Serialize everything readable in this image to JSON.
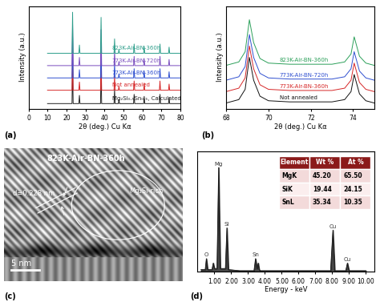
{
  "chart_data": [
    {
      "panel": "(a)",
      "type": "line",
      "x_label": "2θ (deg.) Cu Kα",
      "y_label": "Intensity (a.u.)",
      "xlim": [
        0,
        80
      ],
      "xticks": [
        0,
        10,
        20,
        30,
        40,
        50,
        60,
        70,
        80
      ],
      "ylim": [
        0,
        100
      ],
      "tick_labels": "x",
      "x": [
        10,
        22.9,
        23.2,
        23.5,
        26.5,
        26.8,
        27.1,
        37.9,
        38.2,
        38.5,
        45.0,
        45.3,
        45.6,
        47.3,
        47.6,
        47.9,
        55.3,
        55.6,
        55.9,
        60.6,
        60.9,
        61.2,
        68.9,
        69.2,
        69.5,
        73.7,
        74.0,
        74.3,
        80
      ],
      "series": [
        {
          "name": "Mg₂Si₀.₅Sn₀.₅, Calculated",
          "color": "#222222",
          "values": [
            5,
            5,
            45,
            5,
            5,
            13,
            5,
            5,
            40,
            5,
            5,
            19,
            5,
            5,
            9,
            5,
            5,
            14,
            5,
            5,
            12,
            5,
            5,
            14,
            5,
            5,
            11,
            5,
            5
          ]
        },
        {
          "name": "Not annealed",
          "color": "#d62728",
          "values": [
            18,
            18,
            58,
            18,
            18,
            26,
            18,
            18,
            53,
            18,
            18,
            32,
            18,
            18,
            22,
            18,
            18,
            27,
            18,
            18,
            25,
            18,
            18,
            27,
            18,
            18,
            24,
            18,
            18
          ]
        },
        {
          "name": "773K-Air-BN-360h",
          "color": "#3050d0",
          "values": [
            30,
            30,
            70,
            30,
            30,
            38,
            30,
            30,
            65,
            30,
            30,
            44,
            30,
            30,
            34,
            30,
            30,
            39,
            30,
            30,
            37,
            30,
            30,
            39,
            30,
            30,
            36,
            30,
            30
          ]
        },
        {
          "name": "773K-Air-BN-720h",
          "color": "#7b4fbf",
          "values": [
            42,
            42,
            82,
            42,
            42,
            50,
            42,
            42,
            77,
            42,
            42,
            56,
            42,
            42,
            46,
            42,
            42,
            51,
            42,
            42,
            49,
            42,
            42,
            51,
            42,
            42,
            48,
            42,
            42
          ]
        },
        {
          "name": "823K-Air-BN-360h",
          "color": "#2e9e8b",
          "values": [
            54,
            54,
            94,
            54,
            54,
            62,
            54,
            54,
            89,
            54,
            54,
            68,
            54,
            54,
            58,
            54,
            54,
            63,
            54,
            54,
            61,
            54,
            54,
            63,
            54,
            54,
            60,
            54,
            54
          ]
        }
      ]
    },
    {
      "panel": "(b)",
      "type": "line",
      "x_label": "2θ (deg.) Cu Kα",
      "y_label": "Intensity (a.u.)",
      "xlim": [
        68,
        75
      ],
      "xticks": [
        68,
        70,
        72,
        74
      ],
      "ylim": [
        0,
        90
      ],
      "tick_labels": "x",
      "x": [
        68.0,
        68.6,
        68.9,
        69.1,
        69.3,
        69.6,
        70.0,
        71.0,
        72.0,
        73.0,
        73.6,
        73.9,
        74.05,
        74.3,
        74.6,
        75.0
      ],
      "series": [
        {
          "name": "Not annealed",
          "color": "#111111",
          "values": [
            5,
            8,
            17,
            45,
            25,
            11,
            7,
            6,
            6,
            6,
            8,
            15,
            30,
            13,
            7,
            5
          ]
        },
        {
          "name": "773K-Air-BN-360h",
          "color": "#d62728",
          "values": [
            15,
            18,
            27,
            55,
            35,
            21,
            17,
            16,
            16,
            16,
            18,
            25,
            40,
            23,
            17,
            15
          ]
        },
        {
          "name": "773K-Air-BN-720h",
          "color": "#3050d0",
          "values": [
            25,
            28,
            37,
            65,
            45,
            31,
            27,
            26,
            26,
            26,
            28,
            35,
            50,
            33,
            27,
            25
          ]
        },
        {
          "name": "823K-Air-BN-360h",
          "color": "#2ca05a",
          "values": [
            38,
            41,
            50,
            78,
            58,
            44,
            40,
            39,
            39,
            39,
            41,
            48,
            63,
            46,
            40,
            38
          ]
        }
      ]
    },
    {
      "panel": "(c)",
      "type": "image",
      "title": "823K-Air-BN-360h",
      "annotations": [
        "d=0.228 nm",
        "Mg₂Si-rich"
      ],
      "scale_bar_label": "5 nm"
    },
    {
      "panel": "(d)",
      "type": "line",
      "x_label": "Energy - keV",
      "xlim": [
        0,
        10.5
      ],
      "xticks": [
        {
          "value": 1,
          "label": "1.00"
        },
        {
          "value": 2,
          "label": "2.00"
        },
        {
          "value": 3,
          "label": "3.00"
        },
        {
          "value": 4,
          "label": "4.00"
        },
        {
          "value": 5,
          "label": "5.00"
        },
        {
          "value": 6,
          "label": "6.00"
        },
        {
          "value": 7,
          "label": "7.00"
        },
        {
          "value": 8,
          "label": "8.00"
        },
        {
          "value": 9,
          "label": "9.00"
        },
        {
          "value": 10,
          "label": "10.00"
        }
      ],
      "ylim": [
        0,
        110
      ],
      "tick_labels": "x",
      "color": "#1a1a1a",
      "x": [
        0.2,
        0.45,
        0.52,
        0.6,
        0.85,
        0.93,
        1.0,
        1.15,
        1.25,
        1.35,
        1.65,
        1.74,
        1.83,
        2.5,
        3.35,
        3.44,
        3.53,
        3.6,
        3.66,
        3.72,
        4.5,
        7.9,
        8.04,
        8.15,
        8.8,
        8.9,
        9.0,
        10.0
      ],
      "values": [
        2,
        2,
        12,
        2,
        2,
        8,
        3,
        3,
        95,
        3,
        3,
        40,
        2,
        1,
        1,
        12,
        3,
        8,
        2,
        1,
        1,
        1,
        38,
        1,
        1,
        8,
        1,
        1
      ],
      "annotations": [
        {
          "text": "O",
          "x": 0.52,
          "y": 12
        },
        {
          "text": "Mg",
          "x": 1.25,
          "y": 95
        },
        {
          "text": "Si",
          "x": 1.74,
          "y": 40
        },
        {
          "text": "Sn",
          "x": 3.44,
          "y": 12
        },
        {
          "text": "Cu",
          "x": 8.04,
          "y": 38
        },
        {
          "text": "Cu",
          "x": 8.9,
          "y": 8
        }
      ],
      "table": {
        "header": [
          "Element",
          "Wt %",
          "At %"
        ],
        "rows": [
          [
            "MgK",
            "45.20",
            "65.50"
          ],
          [
            "SiK",
            "19.44",
            "24.15"
          ],
          [
            "SnL",
            "35.34",
            "10.35"
          ]
        ]
      }
    }
  ]
}
